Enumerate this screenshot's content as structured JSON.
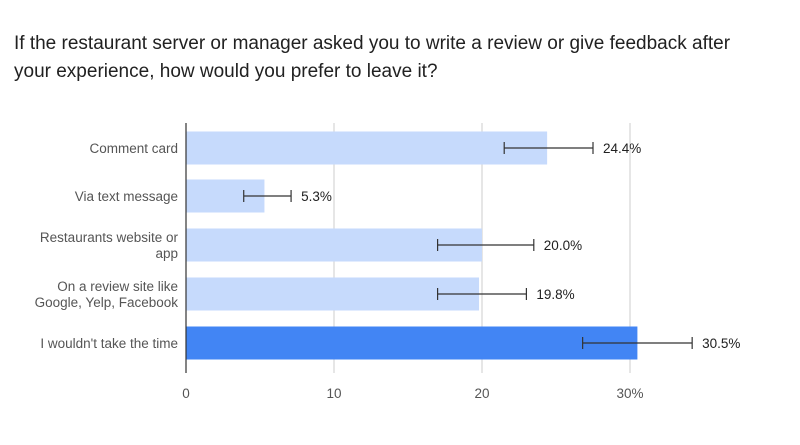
{
  "title_lines": [
    "If the restaurant server or manager asked you to write a review or give feedback after",
    "your experience, how would you prefer to leave it?"
  ],
  "chart_data": {
    "type": "bar",
    "orientation": "horizontal",
    "categories": [
      [
        "Comment card"
      ],
      [
        "Via text message"
      ],
      [
        "Restaurants website or",
        "app"
      ],
      [
        "On a review site like",
        "Google, Yelp, Facebook"
      ],
      [
        "I wouldn't take the time"
      ]
    ],
    "values": [
      24.4,
      5.3,
      20.0,
      19.8,
      30.5
    ],
    "value_labels": [
      "24.4%",
      "5.3%",
      "20.0%",
      "19.8%",
      "30.5%"
    ],
    "error_bars": [
      [
        21.5,
        27.5
      ],
      [
        3.9,
        7.1
      ],
      [
        17.0,
        23.5
      ],
      [
        17.0,
        23.0
      ],
      [
        26.8,
        34.2
      ]
    ],
    "highlight_index": 4,
    "xlim": [
      0,
      30
    ],
    "xticks": [
      0,
      10,
      20,
      30
    ],
    "xtick_labels": [
      "0",
      "10",
      "20",
      "30%"
    ],
    "grid": true,
    "colors": {
      "bar": "#c6dafc",
      "highlight": "#4285f4",
      "grid": "#cccccc",
      "axis": "#333333",
      "error": "#333333"
    }
  }
}
